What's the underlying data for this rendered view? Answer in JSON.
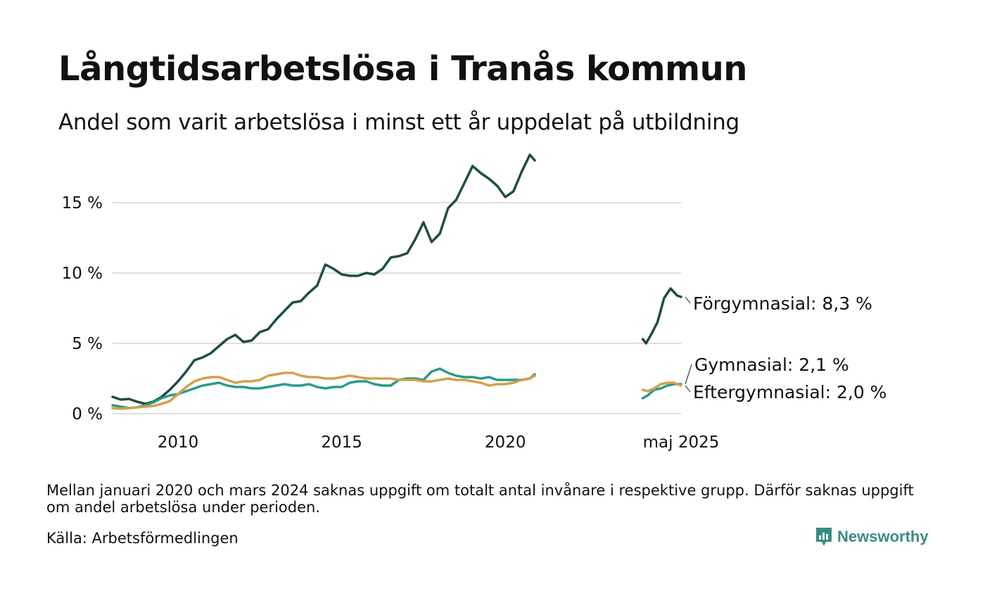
{
  "title": "Långtidsarbetslösa i Tranås kommun",
  "subtitle": "Andel som varit arbetslösa i minst ett år uppdelat på utbildning",
  "note": "Mellan januari 2020 och mars 2024 saknas uppgift om totalt antal invånare i respektive grupp. Därför saknas uppgift om andel arbetslösa under perioden.",
  "source": "Källa: Arbetsförmedlingen",
  "brand": "Newsworthy",
  "colors": {
    "forgymnasial": "#1f4d43",
    "gymnasial": "#2a9a8c",
    "eftergymnasial": "#d4a04c",
    "grid": "#dddddd"
  },
  "chart_data": {
    "type": "line",
    "title": "Långtidsarbetslösa i Tranås kommun",
    "subtitle": "Andel som varit arbetslösa i minst ett år uppdelat på utbildning",
    "xlabel": "",
    "ylabel": "",
    "ylim": [
      0,
      19
    ],
    "y_ticks": [
      {
        "value": 0,
        "label": "0 %"
      },
      {
        "value": 5,
        "label": "5 %"
      },
      {
        "value": 10,
        "label": "10 %"
      },
      {
        "value": 15,
        "label": "15 %"
      }
    ],
    "x_ticks": [
      {
        "value": 2010.0,
        "label": "2010"
      },
      {
        "value": 2015.0,
        "label": "2015"
      },
      {
        "value": 2020.0,
        "label": "2020"
      },
      {
        "value": 2025.37,
        "label": "maj 2025"
      }
    ],
    "x_range": [
      2008.0,
      2025.37
    ],
    "grid": true,
    "legend": "end-labels",
    "series": [
      {
        "name": "Förgymnasial",
        "end_label": "Förgymnasial: 8,3 %",
        "color": "#1f4d43",
        "segments": [
          [
            [
              2008.0,
              1.2
            ],
            [
              2008.25,
              1.0
            ],
            [
              2008.5,
              1.05
            ],
            [
              2008.75,
              0.85
            ],
            [
              2009.0,
              0.7
            ],
            [
              2009.25,
              0.85
            ],
            [
              2009.5,
              1.2
            ],
            [
              2009.75,
              1.7
            ],
            [
              2010.0,
              2.3
            ],
            [
              2010.25,
              3.0
            ],
            [
              2010.5,
              3.8
            ],
            [
              2010.75,
              4.0
            ],
            [
              2011.0,
              4.3
            ],
            [
              2011.25,
              4.8
            ],
            [
              2011.5,
              5.3
            ],
            [
              2011.75,
              5.6
            ],
            [
              2012.0,
              5.1
            ],
            [
              2012.25,
              5.2
            ],
            [
              2012.5,
              5.8
            ],
            [
              2012.75,
              6.0
            ],
            [
              2013.0,
              6.7
            ],
            [
              2013.25,
              7.3
            ],
            [
              2013.5,
              7.9
            ],
            [
              2013.75,
              8.0
            ],
            [
              2014.0,
              8.6
            ],
            [
              2014.25,
              9.1
            ],
            [
              2014.5,
              10.6
            ],
            [
              2014.75,
              10.3
            ],
            [
              2015.0,
              9.9
            ],
            [
              2015.25,
              9.8
            ],
            [
              2015.5,
              9.8
            ],
            [
              2015.75,
              10.0
            ],
            [
              2016.0,
              9.9
            ],
            [
              2016.25,
              10.3
            ],
            [
              2016.5,
              11.1
            ],
            [
              2016.75,
              11.2
            ],
            [
              2017.0,
              11.4
            ],
            [
              2017.25,
              12.4
            ],
            [
              2017.5,
              13.6
            ],
            [
              2017.75,
              12.2
            ],
            [
              2018.0,
              12.8
            ],
            [
              2018.25,
              14.6
            ],
            [
              2018.5,
              15.2
            ],
            [
              2018.75,
              16.4
            ],
            [
              2019.0,
              17.6
            ],
            [
              2019.25,
              17.1
            ],
            [
              2019.5,
              16.7
            ],
            [
              2019.75,
              16.2
            ],
            [
              2020.0,
              15.4
            ],
            [
              2020.25,
              15.8
            ],
            [
              2020.5,
              17.2
            ],
            [
              2020.75,
              18.4
            ],
            [
              2020.9,
              18.0
            ]
          ],
          [
            [
              2024.2,
              5.3
            ],
            [
              2024.3,
              5.0
            ],
            [
              2024.45,
              5.6
            ],
            [
              2024.65,
              6.5
            ],
            [
              2024.85,
              8.2
            ],
            [
              2025.05,
              8.9
            ],
            [
              2025.25,
              8.4
            ],
            [
              2025.37,
              8.3
            ]
          ]
        ]
      },
      {
        "name": "Gymnasial",
        "end_label": "Gymnasial: 2,1 %",
        "color": "#2a9a8c",
        "segments": [
          [
            [
              2008.0,
              0.6
            ],
            [
              2008.25,
              0.5
            ],
            [
              2008.5,
              0.4
            ],
            [
              2008.75,
              0.45
            ],
            [
              2009.0,
              0.6
            ],
            [
              2009.25,
              0.8
            ],
            [
              2009.5,
              1.1
            ],
            [
              2009.75,
              1.3
            ],
            [
              2010.0,
              1.4
            ],
            [
              2010.25,
              1.6
            ],
            [
              2010.5,
              1.8
            ],
            [
              2010.75,
              2.0
            ],
            [
              2011.0,
              2.1
            ],
            [
              2011.25,
              2.2
            ],
            [
              2011.5,
              2.0
            ],
            [
              2011.75,
              1.9
            ],
            [
              2012.0,
              1.9
            ],
            [
              2012.25,
              1.8
            ],
            [
              2012.5,
              1.8
            ],
            [
              2012.75,
              1.9
            ],
            [
              2013.0,
              2.0
            ],
            [
              2013.25,
              2.1
            ],
            [
              2013.5,
              2.0
            ],
            [
              2013.75,
              2.0
            ],
            [
              2014.0,
              2.1
            ],
            [
              2014.25,
              1.9
            ],
            [
              2014.5,
              1.8
            ],
            [
              2014.75,
              1.9
            ],
            [
              2015.0,
              1.9
            ],
            [
              2015.25,
              2.2
            ],
            [
              2015.5,
              2.3
            ],
            [
              2015.75,
              2.3
            ],
            [
              2016.0,
              2.1
            ],
            [
              2016.25,
              2.0
            ],
            [
              2016.5,
              2.0
            ],
            [
              2016.75,
              2.4
            ],
            [
              2017.0,
              2.5
            ],
            [
              2017.25,
              2.5
            ],
            [
              2017.5,
              2.4
            ],
            [
              2017.75,
              3.0
            ],
            [
              2018.0,
              3.2
            ],
            [
              2018.25,
              2.9
            ],
            [
              2018.5,
              2.7
            ],
            [
              2018.75,
              2.6
            ],
            [
              2019.0,
              2.6
            ],
            [
              2019.25,
              2.5
            ],
            [
              2019.5,
              2.6
            ],
            [
              2019.75,
              2.4
            ],
            [
              2020.0,
              2.4
            ],
            [
              2020.25,
              2.4
            ],
            [
              2020.5,
              2.4
            ],
            [
              2020.75,
              2.5
            ],
            [
              2020.9,
              2.8
            ]
          ],
          [
            [
              2024.2,
              1.1
            ],
            [
              2024.35,
              1.3
            ],
            [
              2024.55,
              1.7
            ],
            [
              2024.75,
              1.8
            ],
            [
              2024.95,
              2.0
            ],
            [
              2025.15,
              2.1
            ],
            [
              2025.37,
              2.1
            ]
          ]
        ]
      },
      {
        "name": "Eftergymnasial",
        "end_label": "Eftergymnasial: 2,0 %",
        "color": "#d4a04c",
        "segments": [
          [
            [
              2008.0,
              0.4
            ],
            [
              2008.25,
              0.35
            ],
            [
              2008.5,
              0.4
            ],
            [
              2008.75,
              0.45
            ],
            [
              2009.0,
              0.5
            ],
            [
              2009.25,
              0.55
            ],
            [
              2009.5,
              0.7
            ],
            [
              2009.75,
              0.9
            ],
            [
              2010.0,
              1.4
            ],
            [
              2010.25,
              1.9
            ],
            [
              2010.5,
              2.3
            ],
            [
              2010.75,
              2.5
            ],
            [
              2011.0,
              2.6
            ],
            [
              2011.25,
              2.6
            ],
            [
              2011.5,
              2.4
            ],
            [
              2011.75,
              2.2
            ],
            [
              2012.0,
              2.3
            ],
            [
              2012.25,
              2.3
            ],
            [
              2012.5,
              2.4
            ],
            [
              2012.75,
              2.7
            ],
            [
              2013.0,
              2.8
            ],
            [
              2013.25,
              2.9
            ],
            [
              2013.5,
              2.9
            ],
            [
              2013.75,
              2.7
            ],
            [
              2014.0,
              2.6
            ],
            [
              2014.25,
              2.6
            ],
            [
              2014.5,
              2.5
            ],
            [
              2014.75,
              2.5
            ],
            [
              2015.0,
              2.6
            ],
            [
              2015.25,
              2.7
            ],
            [
              2015.5,
              2.6
            ],
            [
              2015.75,
              2.5
            ],
            [
              2016.0,
              2.5
            ],
            [
              2016.25,
              2.5
            ],
            [
              2016.5,
              2.5
            ],
            [
              2016.75,
              2.4
            ],
            [
              2017.0,
              2.4
            ],
            [
              2017.25,
              2.4
            ],
            [
              2017.5,
              2.3
            ],
            [
              2017.75,
              2.3
            ],
            [
              2018.0,
              2.4
            ],
            [
              2018.25,
              2.5
            ],
            [
              2018.5,
              2.4
            ],
            [
              2018.75,
              2.4
            ],
            [
              2019.0,
              2.3
            ],
            [
              2019.25,
              2.2
            ],
            [
              2019.5,
              2.0
            ],
            [
              2019.75,
              2.1
            ],
            [
              2020.0,
              2.1
            ],
            [
              2020.25,
              2.2
            ],
            [
              2020.5,
              2.4
            ],
            [
              2020.75,
              2.5
            ],
            [
              2020.9,
              2.7
            ]
          ],
          [
            [
              2024.2,
              1.7
            ],
            [
              2024.35,
              1.6
            ],
            [
              2024.55,
              1.8
            ],
            [
              2024.75,
              2.1
            ],
            [
              2024.95,
              2.2
            ],
            [
              2025.15,
              2.2
            ],
            [
              2025.37,
              2.0
            ]
          ]
        ]
      }
    ]
  }
}
